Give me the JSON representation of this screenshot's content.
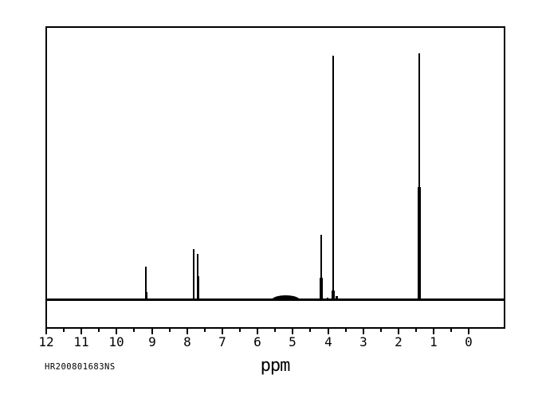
{
  "colors": {
    "ink": "#000000",
    "paper": "#ffffff"
  },
  "chart_data": {
    "type": "line",
    "subtype": "1H-NMR-spectrum",
    "title": "",
    "xlabel": "ppm",
    "sample_id": "HR200801683NS",
    "x_axis": {
      "label": "ppm",
      "min": -1.0,
      "max": 12.0,
      "reversed": true,
      "major_ticks": [
        12,
        11,
        10,
        9,
        8,
        7,
        6,
        5,
        4,
        3,
        2,
        1,
        0
      ],
      "minor_tick_step": 0.5,
      "grid": false
    },
    "y_axis": {
      "visible": false
    },
    "peaks": [
      {
        "ppm": 9.17,
        "rel_height": 0.138,
        "thick_frac": 0.26,
        "thin_w": 2,
        "thick_w": 3
      },
      {
        "ppm": 8.85,
        "rel_height": 0.008,
        "thick_frac": 1.0,
        "thin_w": 2,
        "thick_w": 2
      },
      {
        "ppm": 7.81,
        "rel_height": 0.209,
        "thick_frac": 0.54,
        "thin_w": 2,
        "thick_w": 2
      },
      {
        "ppm": 7.69,
        "rel_height": 0.19,
        "thick_frac": 0.53,
        "thin_w": 2,
        "thick_w": 3
      },
      {
        "ppm": 4.19,
        "rel_height": 0.267,
        "thick_frac": 0.35,
        "thin_w": 2,
        "thick_w": 4
      },
      {
        "ppm": 4.01,
        "rel_height": 0.013,
        "thick_frac": 1.0,
        "thin_w": 2,
        "thick_w": 2
      },
      {
        "ppm": 3.85,
        "rel_height": 0.99,
        "thick_frac": 0.042,
        "thin_w": 2,
        "thick_w": 4
      },
      {
        "ppm": 3.76,
        "rel_height": 0.019,
        "thick_frac": 1.0,
        "thin_w": 3,
        "thick_w": 3
      },
      {
        "ppm": 1.4,
        "rel_height": 1.0,
        "thick_frac": 0.46,
        "thin_w": 2,
        "thick_w": 4
      },
      {
        "ppm": 1.13,
        "rel_height": 0.01,
        "thick_frac": 1.0,
        "thin_w": 2,
        "thick_w": 2
      }
    ],
    "broad_hump": {
      "ppm": 5.2,
      "rel_height": 0.013,
      "width_ppm": 0.85
    }
  }
}
